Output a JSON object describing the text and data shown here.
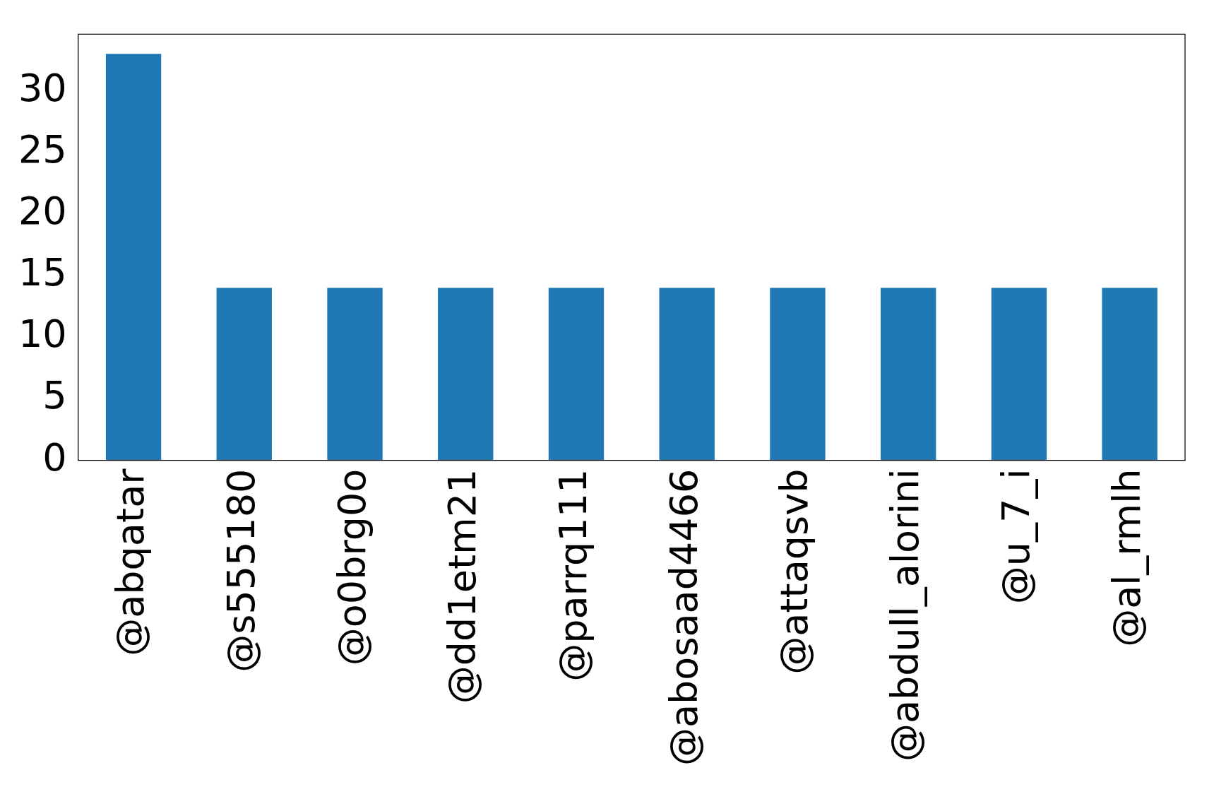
{
  "chart_data": {
    "type": "bar",
    "categories": [
      "@abqatar",
      "@s555180",
      "@o0brg0o",
      "@dd1etm21",
      "@parrq111",
      "@abosaad4466",
      "@attaqsvb",
      "@abdull_alorini",
      "@u_7_i",
      "@al_rmlh"
    ],
    "values": [
      33,
      14,
      14,
      14,
      14,
      14,
      14,
      14,
      14,
      14
    ],
    "color": "#1f77b4",
    "ylim": [
      0,
      34.6
    ],
    "yticks": [
      0,
      5,
      10,
      15,
      20,
      25,
      30
    ],
    "grid": false,
    "legend": false
  }
}
